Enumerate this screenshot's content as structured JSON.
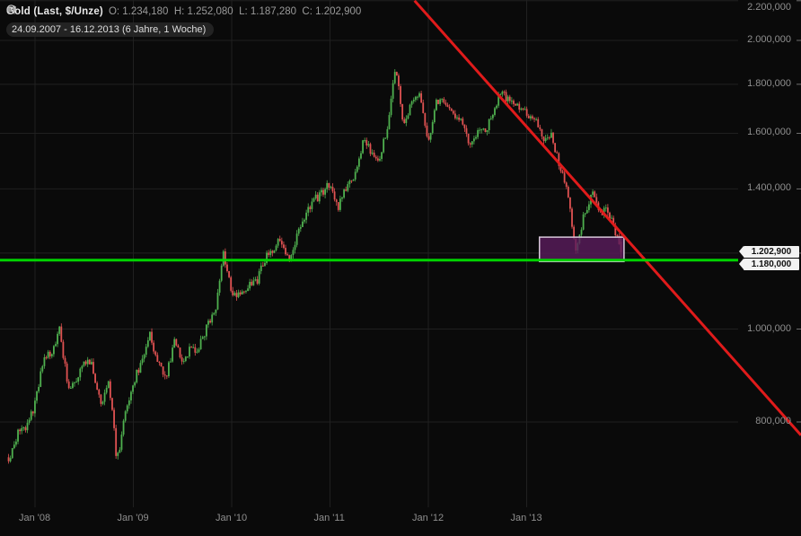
{
  "colors": {
    "background": "#0a0a0a",
    "grid": "#202020",
    "axis_text": "#8f8f8f",
    "candle_up": "#4fb04f",
    "candle_down": "#e05252",
    "support_line": "#00d200",
    "trend_line": "#e01b1b",
    "zone_fill": "#5a1b5c",
    "zone_border": "#d8c8da",
    "tag_bg": "#f2f2f2",
    "tag_text": "#101010"
  },
  "legend": {
    "instrument_icon": "candlestick-icon",
    "title": "Gold (Last, $/Unze)",
    "ohlc": "O: 1.234,180  H: 1.252,080  L: 1.187,280  C: 1.202,900",
    "period_icon": "clock-icon",
    "period": "24.09.2007 - 16.12.2013 (6 Jahre, 1 Woche)"
  },
  "chart_data": {
    "type": "candlestick",
    "title": "Gold (Last, $/Unze)",
    "interval": "1 Woche",
    "period": {
      "start": "24.09.2007",
      "end": "16.12.2013",
      "duration": "6 Jahre, 1 Woche"
    },
    "y_scale": "log",
    "ylabel": "$/Unze",
    "last_candle": {
      "open": 1234.18,
      "high": 1252.08,
      "low": 1187.28,
      "close": 1202.9
    },
    "weeks": 326,
    "t_start": 2007.731,
    "monthly_closes": {
      "t0": 2007.75,
      "start_month": "2007-09",
      "end_month": "2013-12",
      "values": [
        735,
        785,
        790,
        835,
        925,
        945,
        1000,
        870,
        885,
        930,
        915,
        835,
        885,
        725,
        815,
        880,
        925,
        985,
        920,
        885,
        975,
        930,
        955,
        955,
        1005,
        1045,
        1200,
        1095,
        1080,
        1115,
        1115,
        1180,
        1215,
        1245,
        1170,
        1250,
        1310,
        1360,
        1385,
        1420,
        1335,
        1410,
        1440,
        1565,
        1535,
        1500,
        1630,
        1880,
        1620,
        1720,
        1745,
        1565,
        1740,
        1710,
        1670,
        1665,
        1560,
        1600,
        1615,
        1690,
        1770,
        1720,
        1715,
        1675,
        1660,
        1580,
        1595,
        1475,
        1390,
        1200,
        1315,
        1395,
        1330,
        1325,
        1250,
        1203
      ]
    },
    "axes": {
      "y_ticks": [
        {
          "value": 2200,
          "label": "2.200,000"
        },
        {
          "value": 2000,
          "label": "2.000,000"
        },
        {
          "value": 1800,
          "label": "1.800,000"
        },
        {
          "value": 1600,
          "label": "1.600,000"
        },
        {
          "value": 1400,
          "label": "1.400,000"
        },
        {
          "value": 1200,
          "label": "1.200,000"
        },
        {
          "value": 1000,
          "label": "1.000,000"
        },
        {
          "value": 800,
          "label": "800,000"
        }
      ],
      "x_ticks": [
        {
          "t": 2008,
          "label": "Jan '08"
        },
        {
          "t": 2009,
          "label": "Jan '09"
        },
        {
          "t": 2010,
          "label": "Jan '10"
        },
        {
          "t": 2011,
          "label": "Jan '11"
        },
        {
          "t": 2012,
          "label": "Jan '12"
        },
        {
          "t": 2013,
          "label": "Jan '13"
        }
      ],
      "price_tags": [
        {
          "value": 1202.9,
          "label": "1.202,900"
        },
        {
          "value": 1180,
          "label": "1.180,000"
        }
      ]
    },
    "annotations": {
      "support_line": {
        "price": 1180
      },
      "trend_line": {
        "from": {
          "t": 2011.86,
          "price": 2200
        },
        "to": {
          "t": 2015.79,
          "price": 775
        }
      },
      "support_zone": {
        "t_from": 2013.13,
        "t_to": 2013.99,
        "price_low": 1176,
        "price_high": 1247
      }
    }
  }
}
